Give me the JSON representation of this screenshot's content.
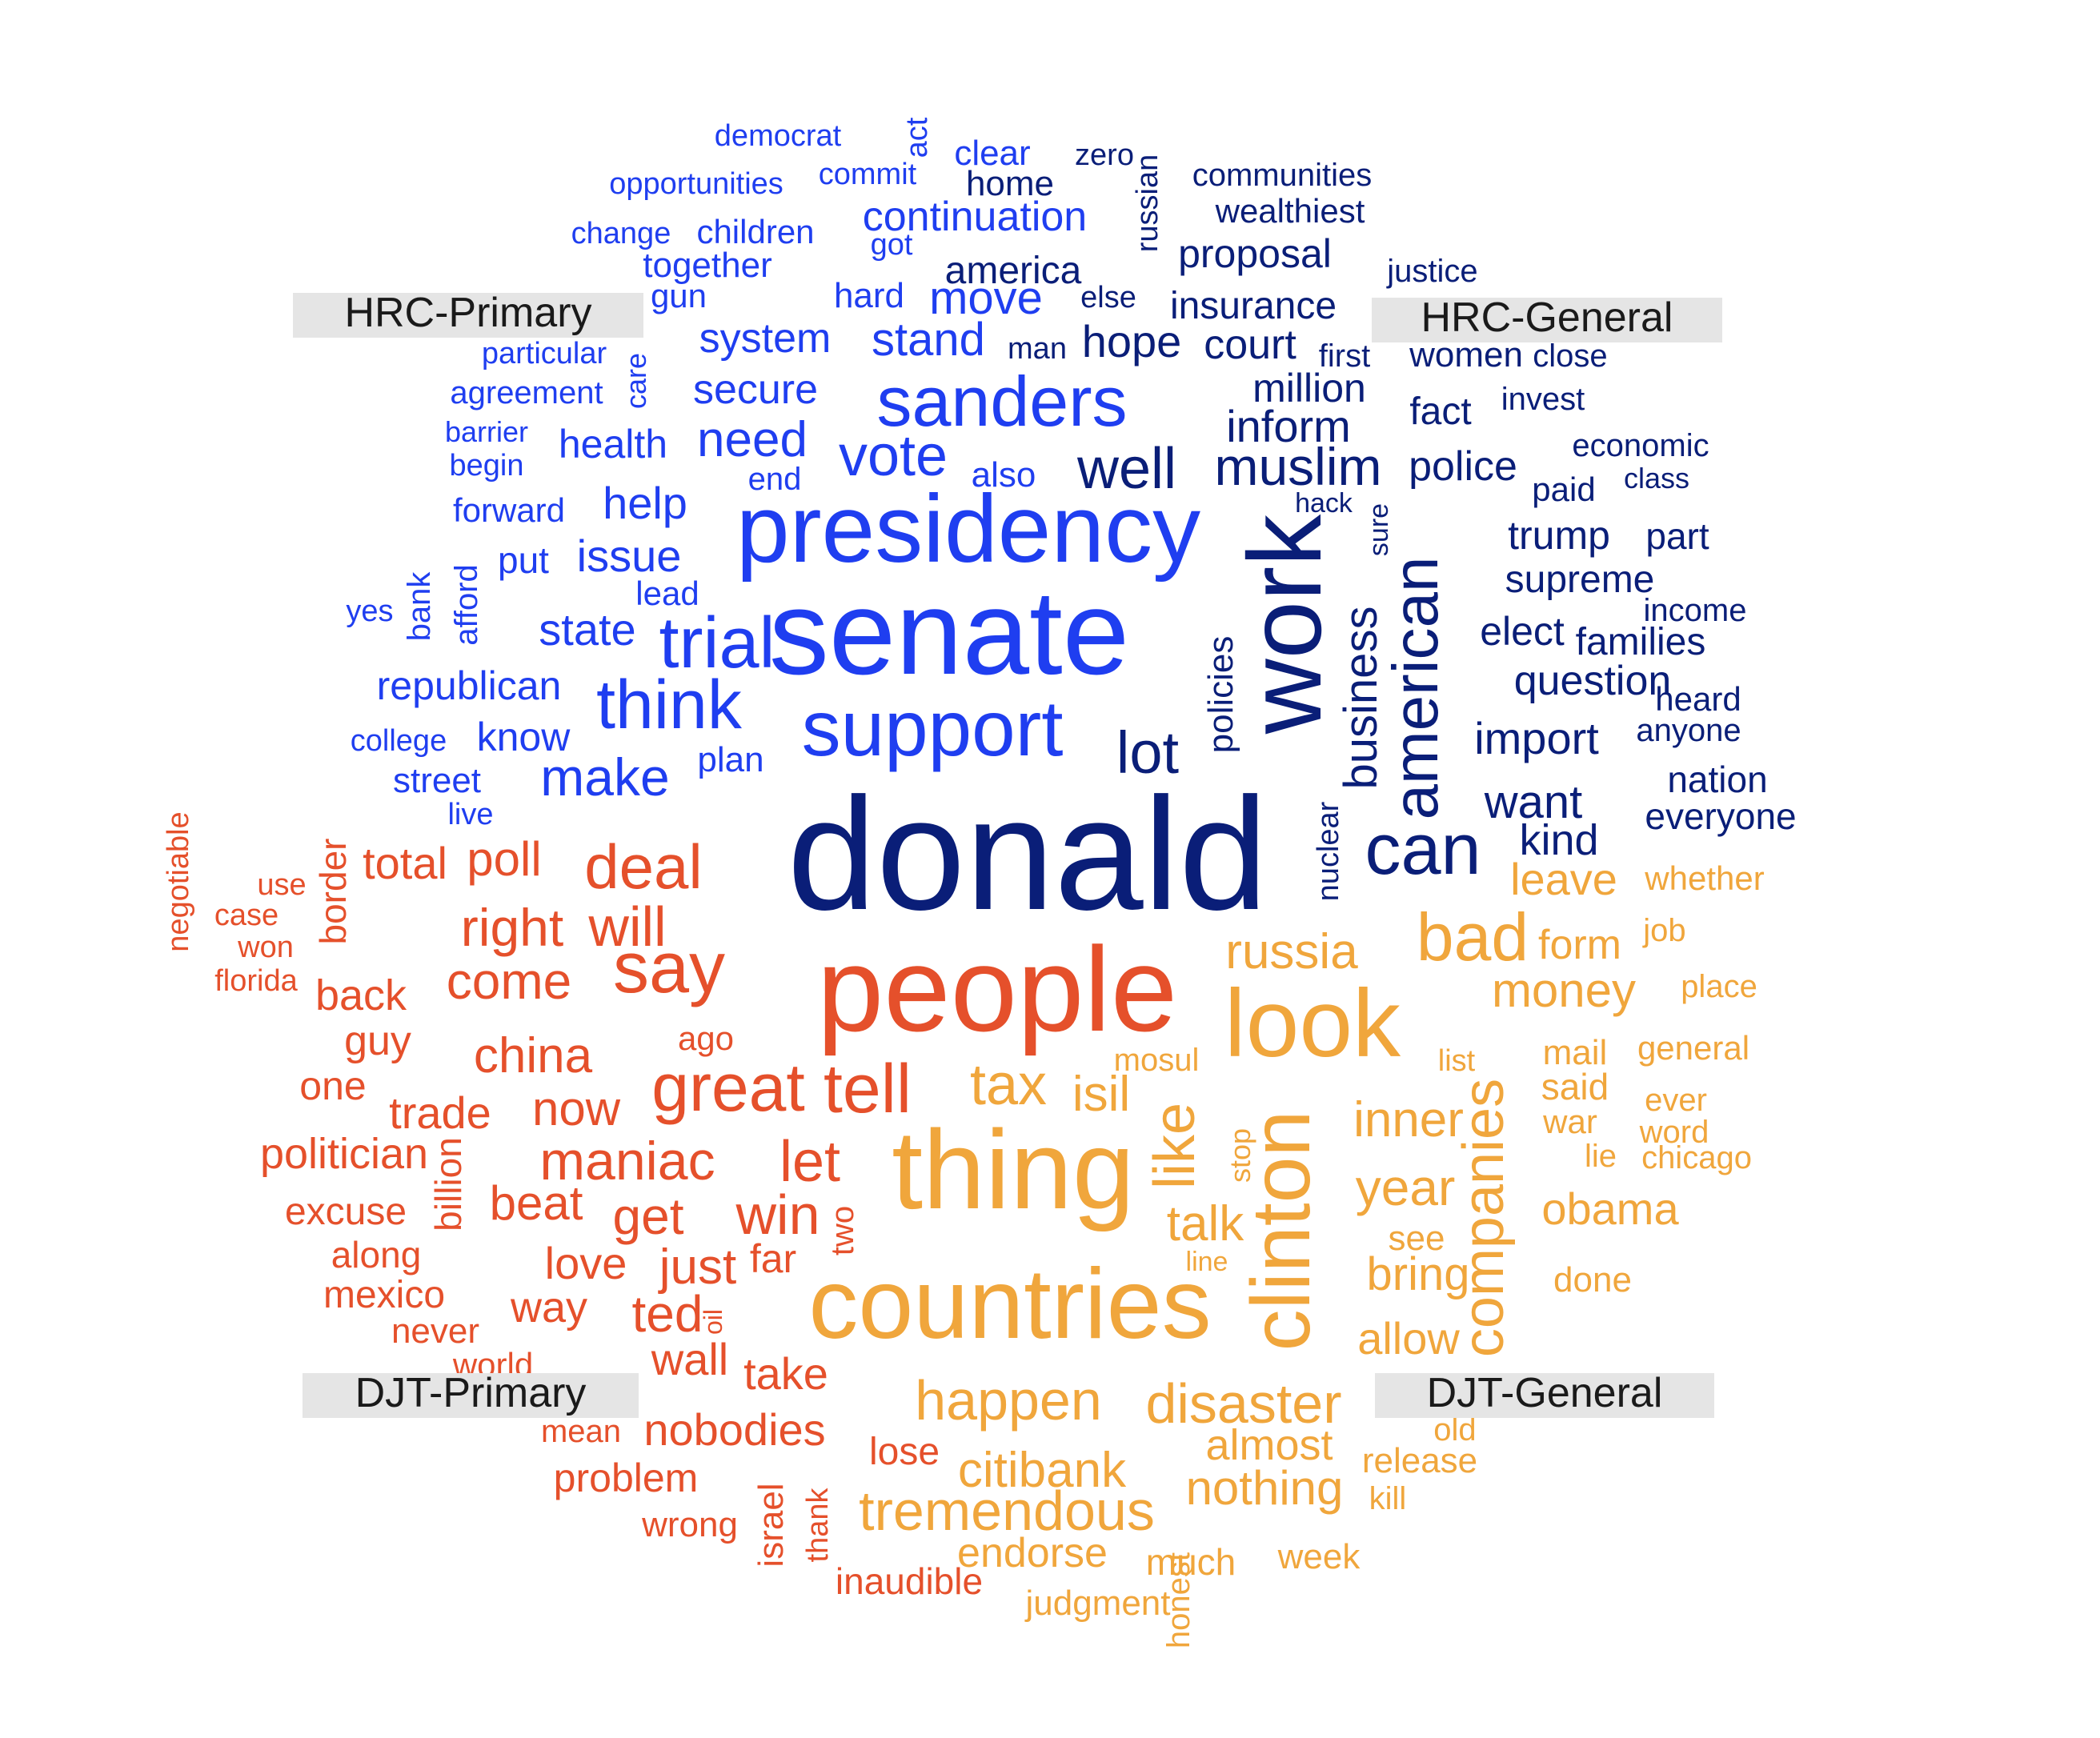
{
  "colors": {
    "hrc_primary": "#1f3ef0",
    "hrc_general": "#0a1e78",
    "djt_primary": "#e5502b",
    "djt_general": "#f0a63c",
    "label_bg": "#e5e5e5",
    "label_text": "#1a1a1a"
  },
  "labels": {
    "hrc_primary": "HRC-Primary",
    "hrc_general": "HRC-General",
    "djt_primary": "DJT-Primary",
    "djt_general": "DJT-General"
  },
  "words": {
    "hrc_primary": [
      "democrat",
      "opportunities",
      "commit",
      "change",
      "children",
      "continuation",
      "got",
      "together",
      "gun",
      "hard",
      "move",
      "particular",
      "system",
      "stand",
      "agreement",
      "secure",
      "sanders",
      "barrier",
      "begin",
      "health",
      "need",
      "end",
      "vote",
      "also",
      "forward",
      "help",
      "presidency",
      "yes",
      "bank",
      "afford",
      "put",
      "issue",
      "lead",
      "state",
      "trial",
      "senate",
      "republican",
      "think",
      "support",
      "college",
      "know",
      "street",
      "plan",
      "make",
      "live",
      "care",
      "clear",
      "act"
    ],
    "hrc_general": [
      "home",
      "zero",
      "communities",
      "wealthiest",
      "russian",
      "america",
      "else",
      "proposal",
      "justice",
      "insurance",
      "man",
      "hope",
      "court",
      "first",
      "women",
      "close",
      "million",
      "inform",
      "fact",
      "invest",
      "well",
      "muslim",
      "police",
      "economic",
      "class",
      "paid",
      "hack",
      "sure",
      "trump",
      "part",
      "supreme",
      "work",
      "american",
      "business",
      "elect",
      "families",
      "income",
      "heard",
      "question",
      "import",
      "anyone",
      "policies",
      "lot",
      "nation",
      "want",
      "everyone",
      "can",
      "kind",
      "nuclear",
      "donald"
    ],
    "djt_primary": [
      "negotiable",
      "use",
      "case",
      "won",
      "florida",
      "border",
      "total",
      "poll",
      "deal",
      "will",
      "right",
      "say",
      "back",
      "come",
      "people",
      "guy",
      "china",
      "ago",
      "one",
      "trade",
      "great",
      "tell",
      "now",
      "politician",
      "billion",
      "maniac",
      "let",
      "excuse",
      "beat",
      "get",
      "win",
      "along",
      "love",
      "just",
      "far",
      "two",
      "mexico",
      "way",
      "ted",
      "oil",
      "never",
      "world",
      "wall",
      "take",
      "mean",
      "nobodies",
      "problem",
      "lose",
      "wrong",
      "israel",
      "thank",
      "inaudible"
    ],
    "djt_general": [
      "leave",
      "whether",
      "russia",
      "bad",
      "form",
      "job",
      "money",
      "place",
      "look",
      "mosul",
      "list",
      "mail",
      "general",
      "tax",
      "isil",
      "said",
      "ever",
      "war",
      "word",
      "inner",
      "lie",
      "chicago",
      "thing",
      "like",
      "stop",
      "year",
      "talk",
      "obama",
      "see",
      "line",
      "bring",
      "done",
      "countries",
      "clinton",
      "companies",
      "allow",
      "happen",
      "disaster",
      "old",
      "almost",
      "release",
      "citibank",
      "nothing",
      "kill",
      "tremendous",
      "endorse",
      "much",
      "week",
      "judgment",
      "honest"
    ]
  }
}
